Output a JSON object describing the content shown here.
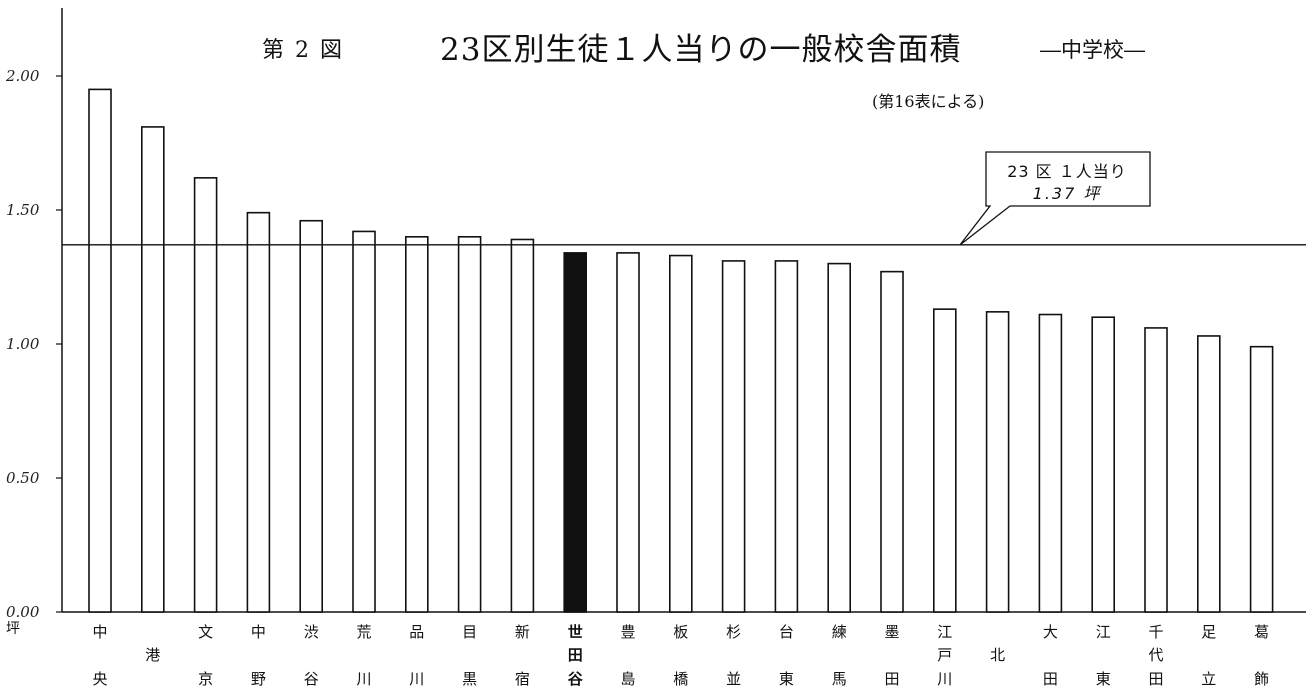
{
  "chart_data": {
    "type": "bar",
    "figure_number": "第 2 図",
    "title": "23区別生徒１人当りの一般校舎面積",
    "subtitle": "―中学校―",
    "source_note": "(第16表による)",
    "y_unit": "坪",
    "ylim": [
      0,
      2.2
    ],
    "y_ticks": [
      0.0,
      0.5,
      1.0,
      1.5,
      2.0
    ],
    "y_tick_labels": [
      "0.00",
      "0.50",
      "1.00",
      "1.50",
      "2.00"
    ],
    "grid": false,
    "categories": [
      "中央",
      "港",
      "文京",
      "中野",
      "渋谷",
      "荒川",
      "品川",
      "目黒",
      "新宿",
      "世田谷",
      "豊島",
      "板橋",
      "杉並",
      "台東",
      "練馬",
      "墨田",
      "江戸川",
      "北",
      "大田",
      "江東",
      "千代田",
      "足立",
      "葛飾"
    ],
    "category_labels": [
      [
        "中",
        "",
        "央"
      ],
      [
        "",
        "港",
        ""
      ],
      [
        "文",
        "",
        "京"
      ],
      [
        "中",
        "",
        "野"
      ],
      [
        "渋",
        "",
        "谷"
      ],
      [
        "荒",
        "",
        "川"
      ],
      [
        "品",
        "",
        "川"
      ],
      [
        "目",
        "",
        "黒"
      ],
      [
        "新",
        "",
        "宿"
      ],
      [
        "世",
        "田",
        "谷"
      ],
      [
        "豊",
        "",
        "島"
      ],
      [
        "板",
        "",
        "橋"
      ],
      [
        "杉",
        "",
        "並"
      ],
      [
        "台",
        "",
        "東"
      ],
      [
        "練",
        "",
        "馬"
      ],
      [
        "墨",
        "",
        "田"
      ],
      [
        "江",
        "戸",
        "川"
      ],
      [
        "",
        "北",
        ""
      ],
      [
        "大",
        "",
        "田"
      ],
      [
        "江",
        "",
        "東"
      ],
      [
        "千",
        "代",
        "田"
      ],
      [
        "足",
        "",
        "立"
      ],
      [
        "葛",
        "",
        "飾"
      ]
    ],
    "values": [
      1.95,
      1.81,
      1.62,
      1.49,
      1.46,
      1.42,
      1.4,
      1.4,
      1.39,
      1.34,
      1.34,
      1.33,
      1.31,
      1.31,
      1.3,
      1.27,
      1.13,
      1.12,
      1.11,
      1.1,
      1.06,
      1.03,
      0.99
    ],
    "highlight_index": 9,
    "colors": {
      "bar_fill": "#ffffff",
      "bar_stroke": "#111111",
      "highlight_fill": "#111111",
      "axis": "#111111"
    },
    "reference_line": {
      "value": 1.37,
      "label_line1": "23 区 １人当り",
      "label_line2": "1.37 坪"
    }
  }
}
